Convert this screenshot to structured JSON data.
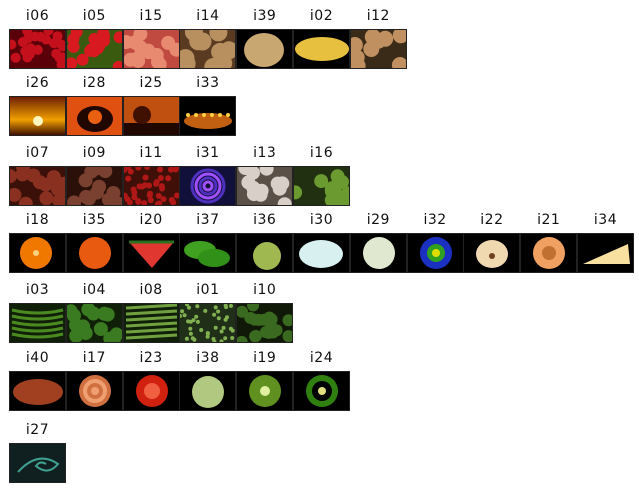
{
  "rows": [
    [
      {
        "label": "i06",
        "icon": "cherries-icon"
      },
      {
        "label": "i05",
        "icon": "cherry-bunch-icon"
      },
      {
        "label": "i15",
        "icon": "peaches-icon"
      },
      {
        "label": "i14",
        "icon": "potatoes-icon"
      },
      {
        "label": "i39",
        "icon": "cantaloupe-icon"
      },
      {
        "label": "i02",
        "icon": "corn-icon"
      },
      {
        "label": "i12",
        "icon": "mushrooms-icon"
      }
    ],
    [
      {
        "label": "i26",
        "icon": "sunset-icon"
      },
      {
        "label": "i28",
        "icon": "pumpkin-cat-icon"
      },
      {
        "label": "i25",
        "icon": "dusk-tree-icon"
      },
      {
        "label": "i33",
        "icon": "candles-icon"
      }
    ],
    [
      {
        "label": "i07",
        "icon": "dates-icon"
      },
      {
        "label": "i09",
        "icon": "hazelnuts-icon"
      },
      {
        "label": "i11",
        "icon": "red-berries-icon"
      },
      {
        "label": "i31",
        "icon": "spiral-icon"
      },
      {
        "label": "i13",
        "icon": "garlic-icon"
      },
      {
        "label": "i16",
        "icon": "sprouts-icon"
      }
    ],
    [
      {
        "label": "i18",
        "icon": "orange-half-icon"
      },
      {
        "label": "i35",
        "icon": "orange-icon"
      },
      {
        "label": "i20",
        "icon": "watermelon-icon"
      },
      {
        "label": "i37",
        "icon": "green-peppers-icon"
      },
      {
        "label": "i36",
        "icon": "pear-icon"
      },
      {
        "label": "i30",
        "icon": "milk-bowl-icon"
      },
      {
        "label": "i29",
        "icon": "onion-icon"
      },
      {
        "label": "i32",
        "icon": "blue-flower-icon"
      },
      {
        "label": "i22",
        "icon": "pear-half-icon"
      },
      {
        "label": "i21",
        "icon": "melon-half-icon"
      },
      {
        "label": "i34",
        "icon": "cheese-icon"
      }
    ],
    [
      {
        "label": "i03",
        "icon": "green-beans-icon"
      },
      {
        "label": "i04",
        "icon": "spinach-icon"
      },
      {
        "label": "i08",
        "icon": "asparagus-icon"
      },
      {
        "label": "i01",
        "icon": "alfalfa-icon"
      },
      {
        "label": "i10",
        "icon": "broccoli-icon"
      }
    ],
    [
      {
        "label": "i40",
        "icon": "sweet-potato-icon"
      },
      {
        "label": "i17",
        "icon": "onion-slice-icon"
      },
      {
        "label": "i23",
        "icon": "tomato-slice-icon"
      },
      {
        "label": "i38",
        "icon": "cabbage-icon"
      },
      {
        "label": "i19",
        "icon": "kiwi-icon"
      },
      {
        "label": "i24",
        "icon": "pepper-slice-icon"
      }
    ],
    [
      {
        "label": "i27",
        "icon": "green-swirl-icon"
      }
    ]
  ],
  "colors": {
    "label": "#111111",
    "frame": "#222222"
  }
}
